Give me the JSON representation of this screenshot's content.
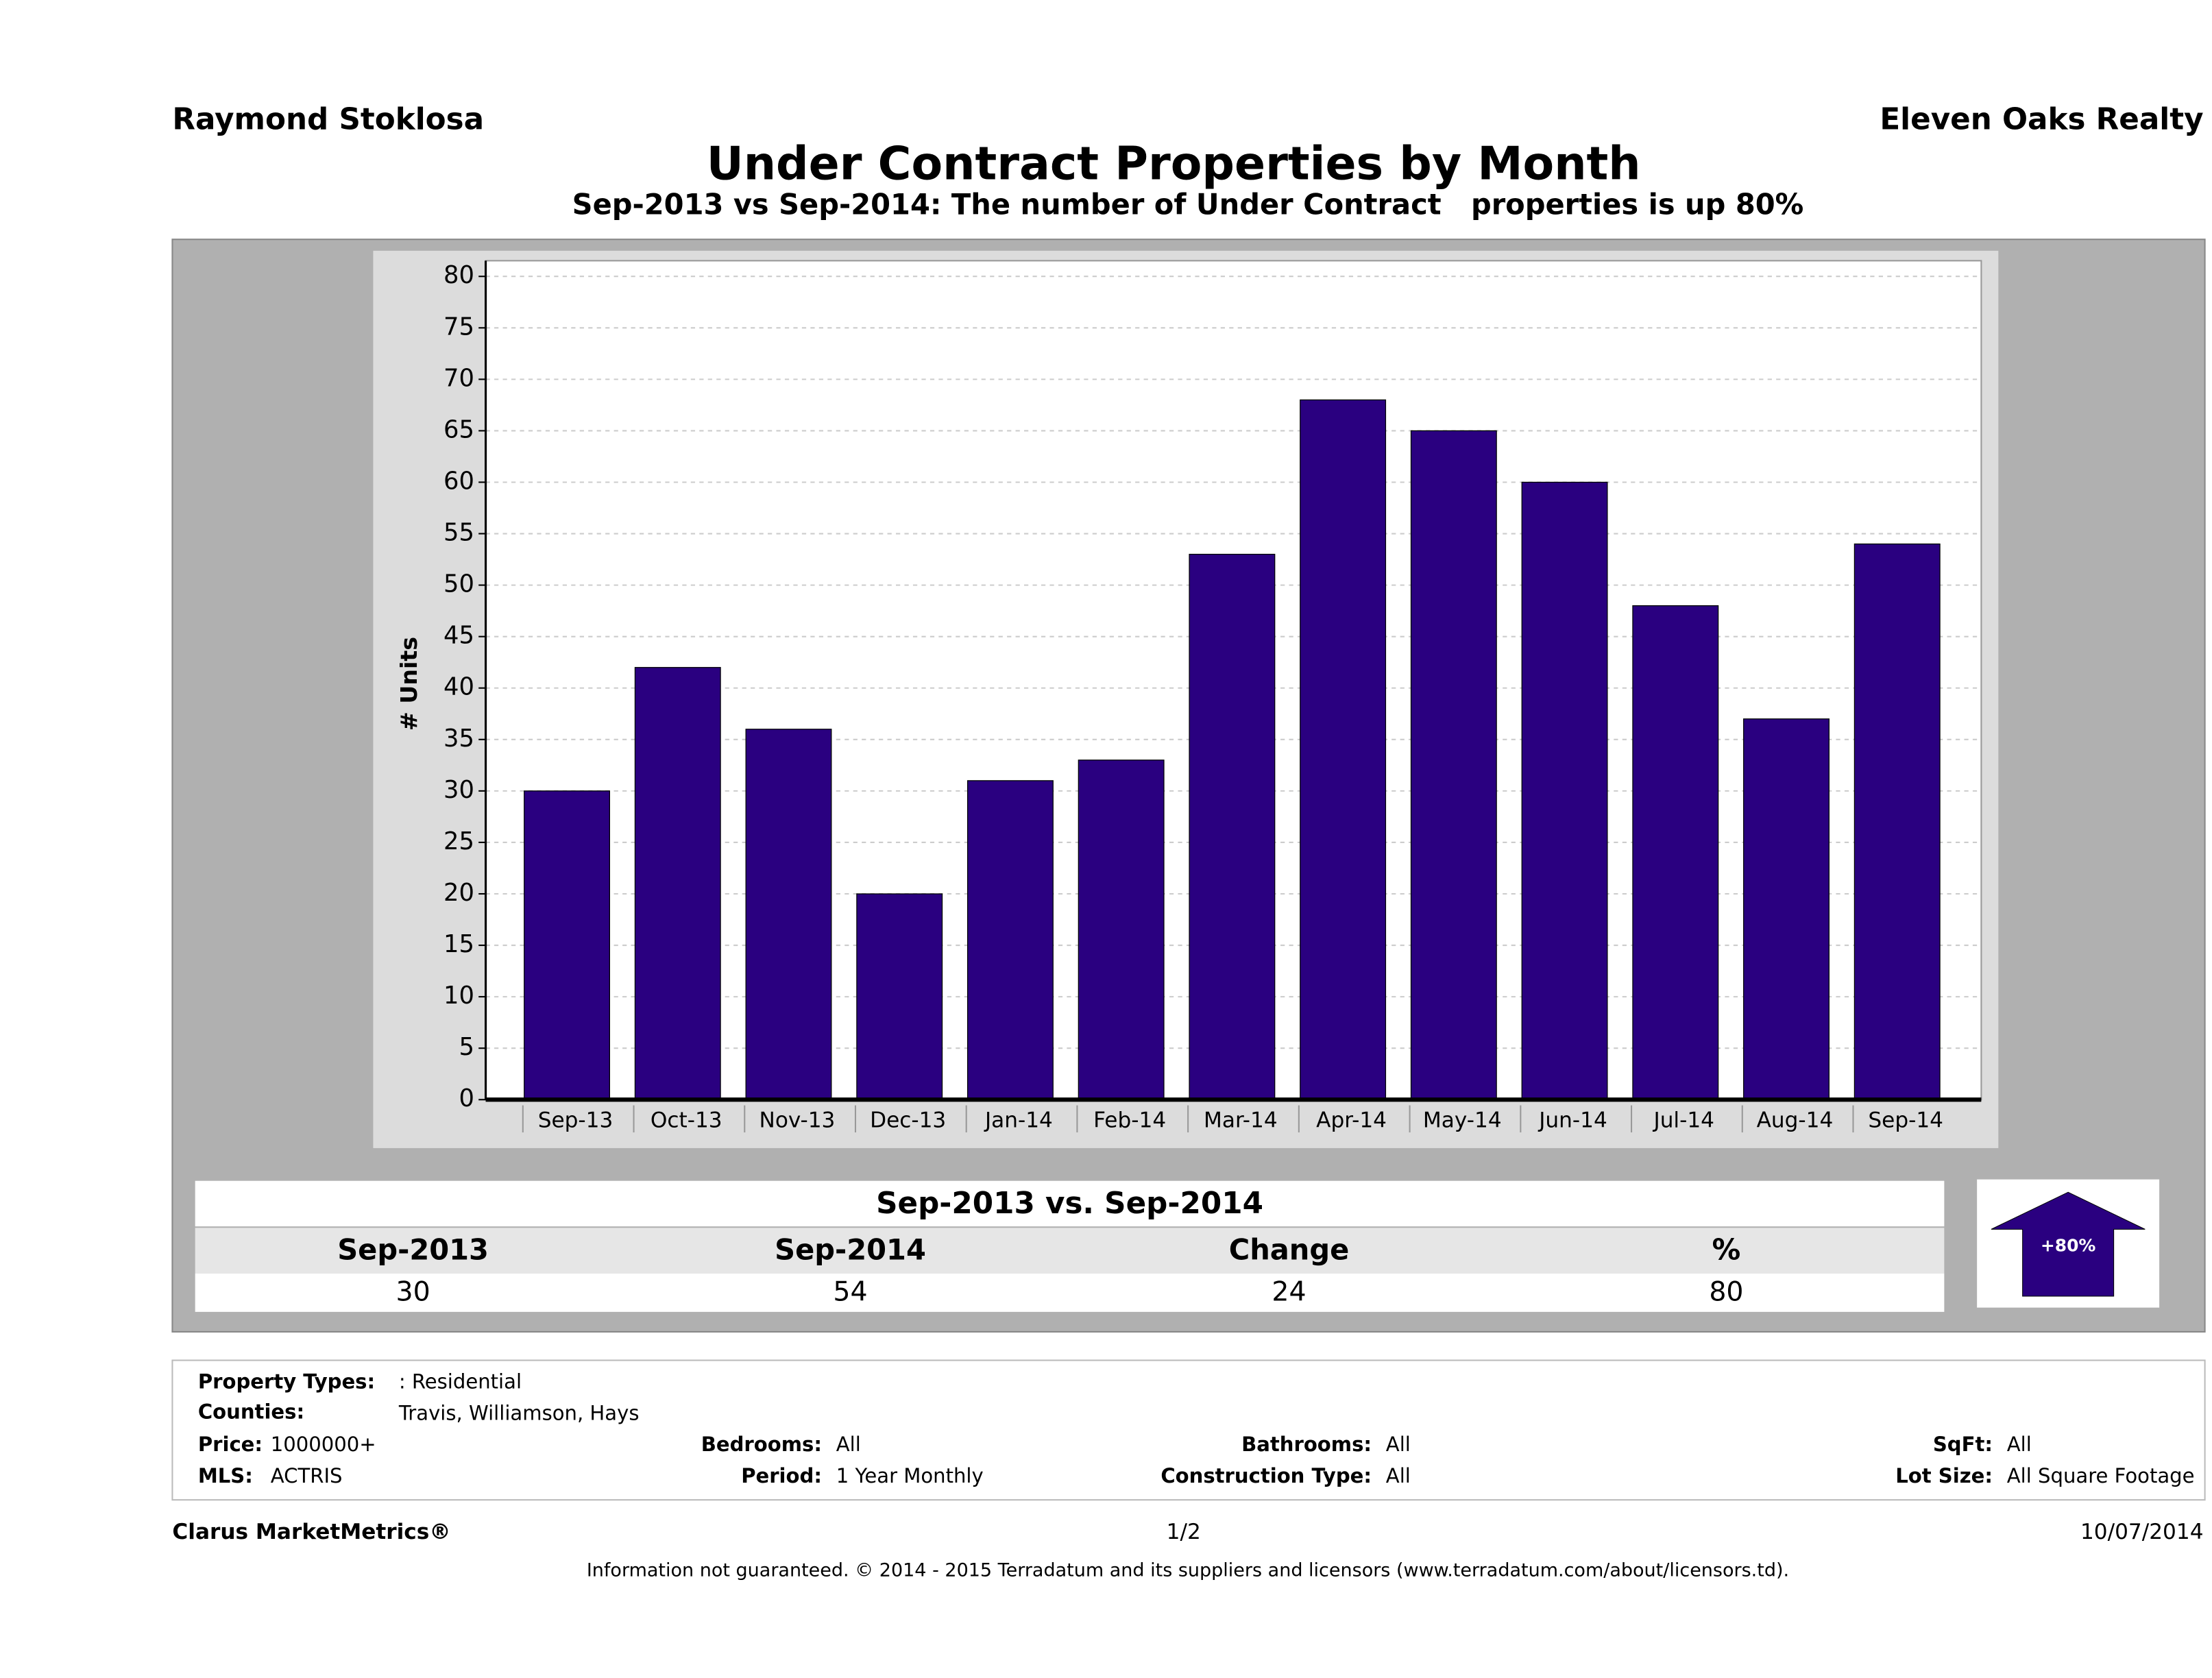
{
  "header": {
    "agent": "Raymond Stoklosa",
    "company": "Eleven Oaks Realty"
  },
  "chart_data": {
    "type": "bar",
    "title": "Under Contract Properties by Month",
    "subtitle": "Sep-2013 vs Sep-2014: The number of Under Contract   properties is up 80%",
    "y_label": "# Units",
    "categories": [
      "Sep-13",
      "Oct-13",
      "Nov-13",
      "Dec-13",
      "Jan-14",
      "Feb-14",
      "Mar-14",
      "Apr-14",
      "May-14",
      "Jun-14",
      "Jul-14",
      "Aug-14",
      "Sep-14"
    ],
    "values": [
      30,
      42,
      36,
      20,
      31,
      33,
      53,
      68,
      65,
      60,
      48,
      37,
      54
    ],
    "color": "#2a0080",
    "ylim": [
      0,
      80
    ],
    "yticks": [
      0,
      5,
      10,
      15,
      20,
      25,
      30,
      35,
      40,
      45,
      50,
      55,
      60,
      65,
      70,
      75,
      80
    ],
    "grid": true
  },
  "summary": {
    "title": "Sep-2013 vs. Sep-2014",
    "headers": [
      "Sep-2013",
      "Sep-2014",
      "Change",
      "%"
    ],
    "values": [
      30,
      54,
      24,
      80
    ],
    "badge": "+80%"
  },
  "filters": [
    {
      "label": "Property Types:",
      "value": ": Residential"
    },
    {
      "label": "Counties:",
      "value": "Travis, Williamson, Hays"
    },
    {
      "label": "Price:",
      "value": "1000000+"
    },
    {
      "label": "MLS:",
      "value": "ACTRIS"
    },
    {
      "label": "Bedrooms:",
      "value": "All"
    },
    {
      "label": "Period:",
      "value": "1 Year Monthly"
    },
    {
      "label": "Bathrooms:",
      "value": "All"
    },
    {
      "label": "Construction Type:",
      "value": "All"
    },
    {
      "label": "SqFt:",
      "value": "All"
    },
    {
      "label": "Lot Size:",
      "value": "All Square Footage"
    }
  ],
  "footer": {
    "brand": "Clarus MarketMetrics®",
    "page": "1/2",
    "date": "10/07/2014",
    "disclaimer": "Information not guaranteed. © 2014 - 2015 Terradatum and its suppliers and licensors (www.terradatum.com/about/licensors.td)."
  }
}
